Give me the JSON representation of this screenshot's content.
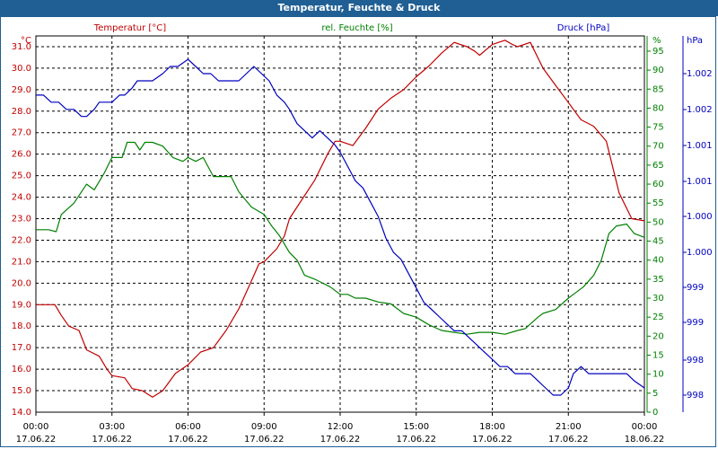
{
  "title": "Temperatur, Feuchte & Druck",
  "colors": {
    "temperature": "#c00000",
    "humidity": "#008000",
    "pressure": "#0000c0",
    "titlebar": "#1f5f94"
  },
  "chart_data": {
    "type": "line",
    "title": "Temperatur, Feuchte & Druck",
    "x": {
      "ticks": [
        {
          "time": "00:00",
          "date": "17.06.22"
        },
        {
          "time": "03:00",
          "date": "17.06.22"
        },
        {
          "time": "06:00",
          "date": "17.06.22"
        },
        {
          "time": "09:00",
          "date": "17.06.22"
        },
        {
          "time": "12:00",
          "date": "17.06.22"
        },
        {
          "time": "15:00",
          "date": "17.06.22"
        },
        {
          "time": "18:00",
          "date": "17.06.22"
        },
        {
          "time": "21:00",
          "date": "17.06.22"
        },
        {
          "time": "00:00",
          "date": "18.06.22"
        }
      ],
      "range_hours": [
        0,
        24
      ]
    },
    "axes": {
      "temperature": {
        "label": "Temperatur [°C]",
        "unit": "°C",
        "ylim": [
          14.0,
          31.5
        ],
        "tick_labels": [
          "14.0",
          "15.0",
          "16.0",
          "17.0",
          "18.0",
          "19.0",
          "20.0",
          "21.0",
          "22.0",
          "23.0",
          "24.0",
          "25.0",
          "26.0",
          "27.0",
          "28.0",
          "29.0",
          "30.0",
          "31.0"
        ]
      },
      "humidity": {
        "label": "rel. Feuchte [%]",
        "unit": "%",
        "ylim": [
          0,
          99
        ],
        "tick_labels": [
          "0",
          "5",
          "10",
          "15",
          "20",
          "25",
          "30",
          "35",
          "40",
          "45",
          "50",
          "55",
          "60",
          "65",
          "70",
          "75",
          "80",
          "85",
          "90",
          "95"
        ]
      },
      "pressure": {
        "label": "Druck [hPa]",
        "unit": "hPa",
        "tick_labels": [
          "998",
          "998",
          "999",
          "999",
          "1.000",
          "1.000",
          "1.001",
          "1.001",
          "1.002",
          "1.002"
        ]
      }
    },
    "grid": true,
    "series": [
      {
        "name": "Temperatur [°C]",
        "axis": "temperature",
        "x": [
          0,
          0.5,
          0.75,
          1,
          1.3,
          1.7,
          2,
          2.5,
          2.8,
          3,
          3.5,
          3.8,
          4.2,
          4.6,
          5,
          5.5,
          6,
          6.5,
          7,
          7.5,
          8,
          8.5,
          8.8,
          9,
          9.5,
          9.8,
          10,
          10.5,
          11,
          11.5,
          11.8,
          12,
          12.5,
          13,
          13.5,
          14,
          14.5,
          15,
          15.5,
          16,
          16.5,
          17,
          17.3,
          17.5,
          18,
          18.5,
          18.8,
          19,
          19.5,
          20,
          20.5,
          21,
          21.5,
          22,
          22.5,
          23,
          23.5,
          24
        ],
        "values": [
          19.0,
          19.0,
          19.0,
          18.5,
          18.0,
          17.8,
          16.9,
          16.6,
          16.0,
          15.7,
          15.6,
          15.1,
          15.0,
          14.7,
          15.0,
          15.8,
          16.2,
          16.8,
          17.0,
          17.8,
          18.8,
          20.1,
          20.9,
          21.0,
          21.6,
          22.2,
          23.0,
          23.9,
          24.8,
          26.0,
          26.6,
          26.6,
          26.4,
          27.2,
          28.1,
          28.6,
          29.0,
          29.6,
          30.1,
          30.7,
          31.2,
          31.0,
          30.8,
          30.6,
          31.1,
          31.3,
          31.1,
          31.0,
          31.2,
          30.0,
          29.2,
          28.4,
          27.6,
          27.3,
          26.6,
          24.2,
          23.0,
          22.9
        ]
      },
      {
        "name": "rel. Feuchte [%]",
        "axis": "humidity",
        "x": [
          0,
          0.5,
          0.8,
          1,
          1.5,
          2,
          2.3,
          2.7,
          3,
          3.4,
          3.6,
          3.9,
          4.1,
          4.3,
          4.6,
          5,
          5.4,
          5.8,
          6,
          6.3,
          6.6,
          7,
          7.3,
          7.7,
          8,
          8.5,
          9,
          9.3,
          9.6,
          10,
          10.3,
          10.6,
          11,
          11.3,
          11.6,
          12,
          12.3,
          12.6,
          13,
          13.5,
          14,
          14.5,
          15,
          15.5,
          16,
          16.5,
          17,
          17.5,
          18,
          18.5,
          19,
          19.3,
          19.8,
          20,
          20.5,
          21,
          21.3,
          21.6,
          22,
          22.3,
          22.6,
          22.9,
          23.3,
          23.6,
          24
        ],
        "values": [
          48,
          48,
          47.5,
          52,
          55,
          60,
          58.5,
          63,
          67,
          67,
          71,
          71,
          69,
          71,
          71,
          70,
          67,
          66,
          67,
          66,
          67,
          62,
          62,
          62,
          58,
          54,
          52,
          49,
          46.5,
          42,
          40,
          36,
          35,
          34,
          33,
          31,
          31,
          30,
          30,
          29,
          28.5,
          26,
          25,
          23,
          21.5,
          21,
          20.5,
          21,
          21,
          20.5,
          21.5,
          22,
          25,
          26,
          27,
          30,
          31.5,
          33,
          36,
          40,
          47,
          49,
          49.5,
          47,
          46
        ]
      },
      {
        "name": "Druck [hPa]",
        "axis": "pressure",
        "x": [
          0,
          0.3,
          0.6,
          0.9,
          1.2,
          1.5,
          1.8,
          2,
          2.3,
          2.5,
          2.8,
          3,
          3.3,
          3.5,
          3.8,
          4,
          4.3,
          4.6,
          5,
          5.3,
          5.6,
          6,
          6.3,
          6.6,
          6.9,
          7.2,
          7.5,
          7.8,
          8,
          8.3,
          8.6,
          8.9,
          9.2,
          9.5,
          9.8,
          10,
          10.3,
          10.6,
          10.9,
          11.2,
          11.5,
          11.8,
          12,
          12.3,
          12.6,
          12.9,
          13.2,
          13.5,
          13.8,
          14.1,
          14.4,
          14.7,
          15,
          15.3,
          15.6,
          15.9,
          16.2,
          16.5,
          16.8,
          17.1,
          17.4,
          17.7,
          18,
          18.3,
          18.6,
          18.9,
          19.2,
          19.5,
          19.8,
          20.1,
          20.4,
          20.7,
          21,
          21.2,
          21.5,
          21.8,
          22.1,
          22.4,
          22.7,
          23,
          23.3,
          23.6,
          24
        ],
        "values": [
          1001.7,
          1001.7,
          1001.6,
          1001.6,
          1001.5,
          1001.5,
          1001.4,
          1001.4,
          1001.5,
          1001.6,
          1001.6,
          1001.6,
          1001.7,
          1001.7,
          1001.8,
          1001.9,
          1001.9,
          1001.9,
          1002.0,
          1002.1,
          1002.1,
          1002.2,
          1002.1,
          1002.0,
          1002.0,
          1001.9,
          1001.9,
          1001.9,
          1001.9,
          1002.0,
          1002.1,
          1002.0,
          1001.9,
          1001.7,
          1001.6,
          1001.5,
          1001.3,
          1001.2,
          1001.1,
          1001.2,
          1001.1,
          1001.0,
          1000.9,
          1000.7,
          1000.5,
          1000.4,
          1000.2,
          1000.0,
          999.7,
          999.5,
          999.4,
          999.2,
          999.0,
          998.8,
          998.7,
          998.6,
          998.5,
          998.4,
          998.4,
          998.3,
          998.2,
          998.1,
          998.0,
          997.9,
          997.9,
          997.8,
          997.8,
          997.8,
          997.7,
          997.6,
          997.5,
          997.5,
          997.6,
          997.8,
          997.9,
          997.8,
          997.8,
          997.8,
          997.8,
          997.8,
          997.8,
          997.7,
          997.6
        ]
      }
    ]
  }
}
